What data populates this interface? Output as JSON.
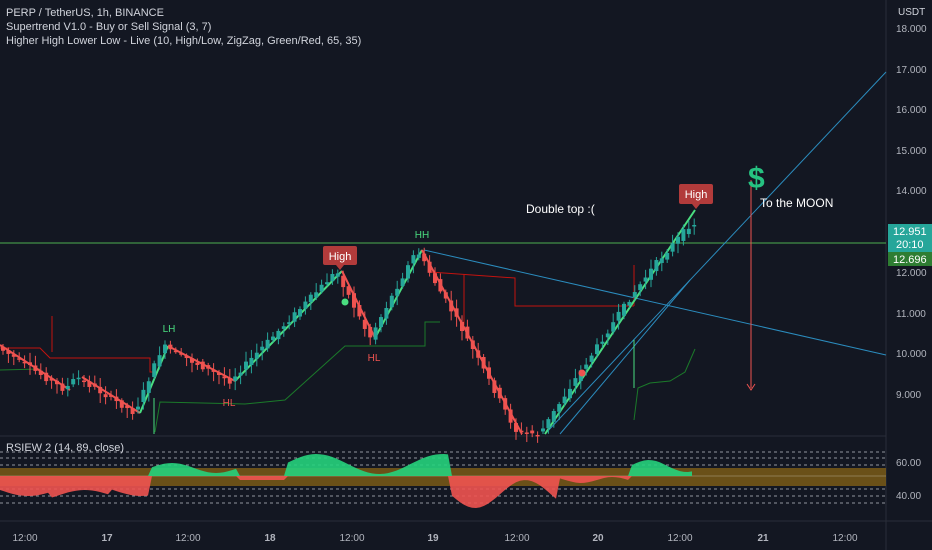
{
  "legend": {
    "symbol": "PERP / TetherUS, 1h, BINANCE",
    "indicator1": "Supertrend V1.0 - Buy or Sell Signal (3, 7)",
    "indicator2": "Higher High Lower Low - Live (10, High/Low, ZigZag, Green/Red, 65, 35)"
  },
  "rsi_title": "RSIEW 2 (14, 89, close)",
  "currency": "USDT",
  "price_axis": {
    "ticks": [
      "18.000",
      "17.000",
      "16.000",
      "15.000",
      "14.000",
      "12.000",
      "11.000",
      "10.000",
      "9.000"
    ],
    "last_price": "12.951",
    "countdown": "20:10",
    "supertrend_value": "12.696"
  },
  "rsi_axis": {
    "ticks": [
      "60.00",
      "40.00"
    ]
  },
  "time_axis": [
    "12:00",
    "17",
    "12:00",
    "18",
    "12:00",
    "19",
    "12:00",
    "20",
    "12:00",
    "21",
    "12:00"
  ],
  "annotations": {
    "double_top": "Double top  :(",
    "to_the_moon": "To the MOON",
    "dollar": "$",
    "high_1": "High",
    "high_2": "High",
    "hh": "HH",
    "lh": "LH",
    "hl": "HL",
    "hl_low": "HL"
  },
  "colors": {
    "background": "#131722",
    "up": "#26a69a",
    "down": "#ef5350",
    "zigzag": "#4ade80",
    "trendline": "#2b8cbe",
    "supertrend_red": "#c3130f",
    "supertrend_green": "#1b7a2a",
    "resistance": "#4caf50"
  }
}
